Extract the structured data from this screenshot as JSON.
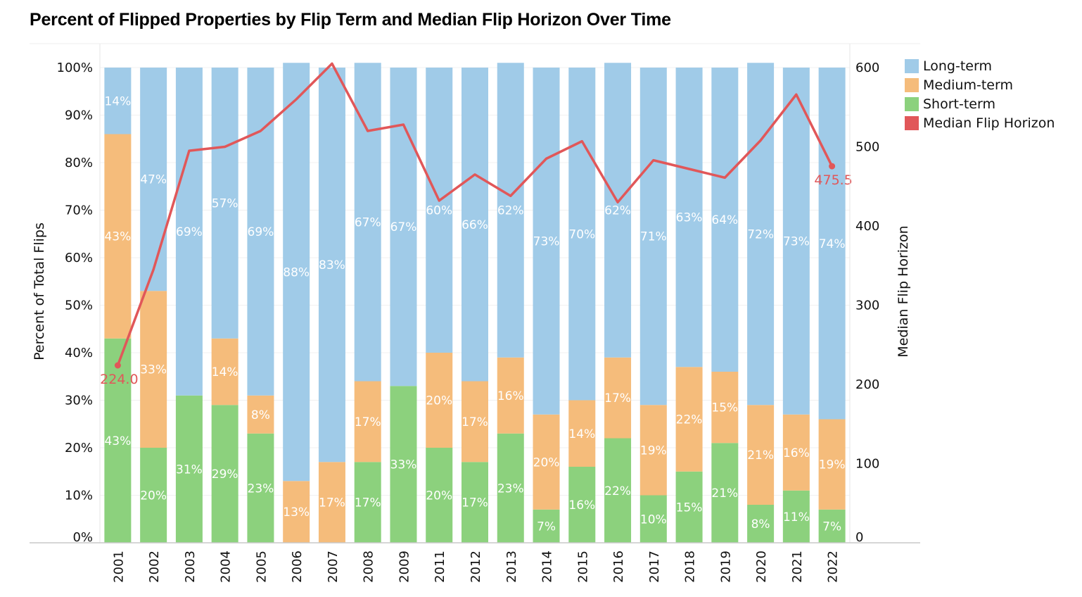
{
  "title": "Percent of Flipped Properties by Flip Term and Median Flip Horizon Over Time",
  "legend": [
    {
      "label": "Long-term",
      "color": "#a0cbe8"
    },
    {
      "label": "Medium-term",
      "color": "#f5bc7b"
    },
    {
      "label": "Short-term",
      "color": "#8cd17d"
    },
    {
      "label": "Median Flip Horizon",
      "color": "#e15759"
    }
  ],
  "chart_data": {
    "type": "bar",
    "stacked": true,
    "xlabel": "",
    "ylabel": "Percent of Total Flips",
    "y2label": "Median Flip Horizon",
    "ylim": [
      0,
      100
    ],
    "y2lim": [
      0,
      600
    ],
    "yticks": [
      "0%",
      "10%",
      "20%",
      "30%",
      "40%",
      "50%",
      "60%",
      "70%",
      "80%",
      "90%",
      "100%"
    ],
    "y2ticks": [
      "0",
      "100",
      "200",
      "300",
      "400",
      "500",
      "600"
    ],
    "categories": [
      "2001",
      "2002",
      "2003",
      "2004",
      "2005",
      "2006",
      "2007",
      "2008",
      "2009",
      "2011",
      "2012",
      "2013",
      "2014",
      "2015",
      "2016",
      "2017",
      "2018",
      "2019",
      "2020",
      "2021",
      "2022"
    ],
    "series": [
      {
        "name": "Short-term",
        "color": "#8cd17d",
        "values": [
          43,
          20,
          31,
          29,
          23,
          0,
          0,
          17,
          33,
          20,
          17,
          23,
          7,
          16,
          22,
          10,
          15,
          21,
          8,
          11,
          7
        ],
        "labels": [
          "43%",
          "20%",
          "31%",
          "29%",
          "23%",
          "",
          "",
          "17%",
          "33%",
          "20%",
          "17%",
          "23%",
          "7%",
          "16%",
          "22%",
          "10%",
          "15%",
          "21%",
          "8%",
          "11%",
          "7%"
        ]
      },
      {
        "name": "Medium-term",
        "color": "#f5bc7b",
        "values": [
          43,
          33,
          0,
          14,
          8,
          13,
          17,
          17,
          0,
          20,
          17,
          16,
          20,
          14,
          17,
          19,
          22,
          15,
          21,
          16,
          19
        ],
        "labels": [
          "43%",
          "33%",
          "",
          "14%",
          "8%",
          "13%",
          "17%",
          "17%",
          "",
          "20%",
          "17%",
          "16%",
          "20%",
          "14%",
          "17%",
          "19%",
          "22%",
          "15%",
          "21%",
          "16%",
          "19%"
        ]
      },
      {
        "name": "Long-term",
        "color": "#a0cbe8",
        "values": [
          14,
          47,
          69,
          57,
          69,
          88,
          83,
          67,
          67,
          60,
          66,
          62,
          73,
          70,
          62,
          71,
          63,
          64,
          72,
          73,
          74
        ],
        "labels": [
          "14%",
          "47%",
          "69%",
          "57%",
          "69%",
          "88%",
          "83%",
          "67%",
          "67%",
          "60%",
          "66%",
          "62%",
          "73%",
          "70%",
          "62%",
          "71%",
          "63%",
          "64%",
          "72%",
          "73%",
          "74%"
        ]
      }
    ],
    "line": {
      "name": "Median Flip Horizon",
      "color": "#e15759",
      "axis": "right",
      "values": [
        224,
        345,
        495,
        500,
        520,
        560,
        605,
        520,
        528,
        432,
        465,
        438,
        485,
        507,
        430,
        483,
        472,
        461,
        508,
        566,
        475.5
      ],
      "end_labels": [
        "224.0",
        "475.5"
      ]
    }
  }
}
